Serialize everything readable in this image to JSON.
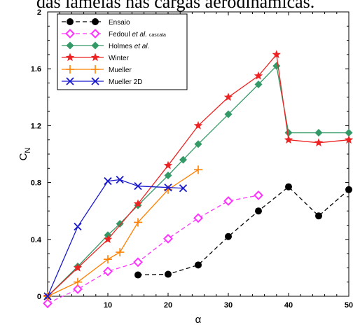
{
  "caption": "das lâmelas nas cargas aerodinâmicas.",
  "chart_data": {
    "type": "line",
    "xlabel": "α",
    "ylabel": "C",
    "ylabel_sub": "N",
    "xlim": [
      0,
      50
    ],
    "ylim": [
      0,
      2
    ],
    "xticks": [
      0,
      10,
      20,
      30,
      40,
      50
    ],
    "yticks": [
      0,
      0.4,
      0.8,
      1.2,
      1.6,
      2
    ],
    "xtick_labels": [
      "0",
      "10",
      "20",
      "30",
      "40",
      "50"
    ],
    "ytick_labels": [
      "0",
      "0.4",
      "0.8",
      "1.2",
      "1.6",
      "2"
    ],
    "grid": false,
    "legend_position": "top-left",
    "series": [
      {
        "name": "Ensaio",
        "name_italic": "",
        "name_suffix": "",
        "name_small": "",
        "color": "#000000",
        "dash": "dashed",
        "marker": "circle",
        "x": [
          15,
          20,
          25,
          30,
          35,
          40,
          45,
          50
        ],
        "y": [
          0.15,
          0.155,
          0.22,
          0.42,
          0.6,
          0.77,
          0.565,
          0.75
        ]
      },
      {
        "name": "Fedoul ",
        "name_italic": "et al.",
        "name_suffix": " ",
        "name_small": "cascata",
        "color": "#ff33ff",
        "dash": "dashed",
        "marker": "diamond-open",
        "x": [
          0,
          5,
          10,
          15,
          20,
          25,
          30,
          35
        ],
        "y": [
          -0.05,
          0.05,
          0.175,
          0.24,
          0.405,
          0.55,
          0.67,
          0.71
        ]
      },
      {
        "name": "Holmes ",
        "name_italic": "et al.",
        "name_suffix": "",
        "name_small": "",
        "color": "#339966",
        "dash": "solid",
        "marker": "diamond",
        "x": [
          0,
          5,
          10,
          12,
          15,
          20,
          22.5,
          25,
          30,
          35,
          38,
          40,
          45,
          50
        ],
        "y": [
          0,
          0.21,
          0.43,
          0.51,
          0.64,
          0.85,
          0.96,
          1.07,
          1.28,
          1.49,
          1.62,
          1.15,
          1.15,
          1.15
        ]
      },
      {
        "name": "Winter",
        "name_italic": "",
        "name_suffix": "",
        "name_small": "",
        "color": "#ee2222",
        "dash": "solid",
        "marker": "star",
        "x": [
          0,
          5,
          10,
          15,
          20,
          25,
          30,
          35,
          38,
          40,
          45,
          50
        ],
        "y": [
          0,
          0.2,
          0.4,
          0.65,
          0.92,
          1.2,
          1.4,
          1.55,
          1.7,
          1.1,
          1.08,
          1.1
        ]
      },
      {
        "name": "Mueller",
        "name_italic": "",
        "name_suffix": "",
        "name_small": "",
        "color": "#ff8000",
        "dash": "solid",
        "marker": "plus",
        "x": [
          0,
          5,
          10,
          12,
          15,
          20,
          25
        ],
        "y": [
          0,
          0.1,
          0.26,
          0.31,
          0.52,
          0.75,
          0.89
        ]
      },
      {
        "name": "Mueller  2D",
        "name_italic": "",
        "name_suffix": "",
        "name_small": "",
        "color": "#1a1acc",
        "dash": "solid",
        "marker": "x",
        "x": [
          0,
          5,
          10,
          12,
          15,
          20,
          22.5
        ],
        "y": [
          0,
          0.49,
          0.81,
          0.82,
          0.775,
          0.765,
          0.76
        ]
      }
    ]
  }
}
